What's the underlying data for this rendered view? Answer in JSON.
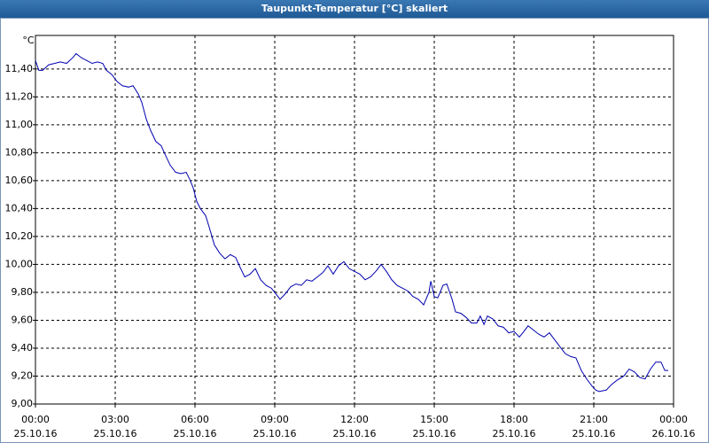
{
  "chart_data": {
    "type": "line",
    "title": "Taupunkt-Temperatur [°C] skaliert",
    "y_label": "°C",
    "x": [
      0,
      0.13,
      0.27,
      0.5,
      0.73,
      0.93,
      1.17,
      1.4,
      1.53,
      1.73,
      1.93,
      2.13,
      2.33,
      2.53,
      2.67,
      2.87,
      3.07,
      3.27,
      3.5,
      3.67,
      3.87,
      4,
      4.17,
      4.33,
      4.53,
      4.73,
      4.87,
      5.07,
      5.27,
      5.47,
      5.67,
      5.8,
      5.93,
      6.07,
      6.2,
      6.4,
      6.53,
      6.73,
      6.93,
      7.13,
      7.33,
      7.53,
      7.67,
      7.87,
      8.07,
      8.27,
      8.47,
      8.67,
      8.87,
      9,
      9.2,
      9.4,
      9.6,
      9.8,
      10,
      10.2,
      10.4,
      10.6,
      10.8,
      11,
      11.2,
      11.4,
      11.6,
      11.8,
      12,
      12.2,
      12.4,
      12.6,
      12.8,
      13,
      13.2,
      13.4,
      13.6,
      13.8,
      14,
      14.2,
      14.4,
      14.6,
      14.8,
      14.87,
      15,
      15.13,
      15.33,
      15.47,
      15.67,
      15.8,
      16,
      16.2,
      16.4,
      16.6,
      16.73,
      16.87,
      17,
      17.2,
      17.4,
      17.6,
      17.8,
      18,
      18.2,
      18.33,
      18.53,
      18.73,
      18.93,
      19.13,
      19.33,
      19.53,
      19.73,
      19.93,
      20.13,
      20.33,
      20.53,
      20.73,
      20.93,
      21.07,
      21.2,
      21.47,
      21.67,
      21.87,
      22.13,
      22.33,
      22.53,
      22.73,
      22.93,
      23.13,
      23.33,
      23.53,
      23.67,
      23.8
    ],
    "series": [
      {
        "color": "#0000b0",
        "values": [
          11.46,
          11.39,
          11.39,
          11.43,
          11.44,
          11.45,
          11.44,
          11.48,
          11.51,
          11.48,
          11.46,
          11.44,
          11.45,
          11.44,
          11.39,
          11.36,
          11.31,
          11.28,
          11.27,
          11.28,
          11.22,
          11.16,
          11.04,
          10.96,
          10.88,
          10.85,
          10.79,
          10.71,
          10.66,
          10.65,
          10.66,
          10.61,
          10.55,
          10.45,
          10.4,
          10.35,
          10.27,
          10.14,
          10.08,
          10.04,
          10.07,
          10.05,
          9.99,
          9.91,
          9.93,
          9.97,
          9.89,
          9.85,
          9.83,
          9.8,
          9.75,
          9.79,
          9.84,
          9.86,
          9.85,
          9.89,
          9.88,
          9.91,
          9.94,
          9.99,
          9.93,
          9.99,
          10.02,
          9.97,
          9.95,
          9.93,
          9.89,
          9.91,
          9.95,
          10.0,
          9.95,
          9.89,
          9.85,
          9.83,
          9.81,
          9.77,
          9.75,
          9.71,
          9.8,
          9.88,
          9.77,
          9.76,
          9.85,
          9.86,
          9.75,
          9.66,
          9.65,
          9.62,
          9.58,
          9.58,
          9.63,
          9.57,
          9.63,
          9.61,
          9.56,
          9.55,
          9.51,
          9.52,
          9.48,
          9.51,
          9.56,
          9.53,
          9.5,
          9.48,
          9.51,
          9.46,
          9.41,
          9.36,
          9.34,
          9.33,
          9.24,
          9.18,
          9.13,
          9.1,
          9.09,
          9.1,
          9.14,
          9.17,
          9.2,
          9.25,
          9.23,
          9.19,
          9.18,
          9.25,
          9.3,
          9.3,
          9.24,
          9.24
        ]
      }
    ],
    "xlim": [
      0,
      24
    ],
    "xticks": [
      {
        "value": 0,
        "label": "00:00 25.10.16"
      },
      {
        "value": 3,
        "label": "03:00 25.10.16"
      },
      {
        "value": 6,
        "label": "06:00 25.10.16"
      },
      {
        "value": 9,
        "label": "09:00 25.10.16"
      },
      {
        "value": 12,
        "label": "12:00 25.10.16"
      },
      {
        "value": 15,
        "label": "15:00 25.10.16"
      },
      {
        "value": 18,
        "label": "18:00 25.10.16"
      },
      {
        "value": 21,
        "label": "21:00 25.10.16"
      },
      {
        "value": 24,
        "label": "00:00 26.10.16"
      }
    ],
    "ylim": [
      9,
      11.64
    ],
    "yticks": [
      {
        "value": 9,
        "label": "9,00"
      },
      {
        "value": 9.2,
        "label": "9,20"
      },
      {
        "value": 9.4,
        "label": "9,40"
      },
      {
        "value": 9.6,
        "label": "9,60"
      },
      {
        "value": 9.8,
        "label": "9,80"
      },
      {
        "value": 10,
        "label": "10,00"
      },
      {
        "value": 10.2,
        "label": "10,20"
      },
      {
        "value": 10.4,
        "label": "10,40"
      },
      {
        "value": 10.6,
        "label": "10,60"
      },
      {
        "value": 10.8,
        "label": "10,80"
      },
      {
        "value": 11,
        "label": "11,00"
      },
      {
        "value": 11.2,
        "label": "11,20"
      },
      {
        "value": 11.4,
        "label": "11,40"
      }
    ],
    "grid": true
  }
}
